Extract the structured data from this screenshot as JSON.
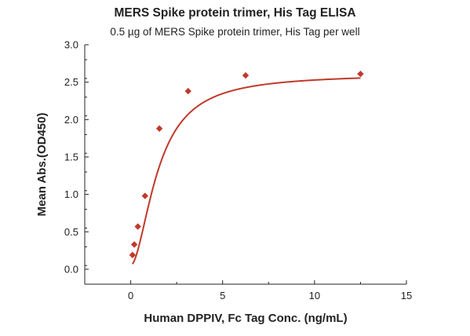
{
  "chart_data": {
    "type": "scatter",
    "title": "MERS Spike protein trimer, His Tag ELISA",
    "subtitle": "0.5 µg of MERS Spike protein trimer, His Tag per well",
    "xlabel": "Human DPPIV, Fc Tag Conc. (ng/mL)",
    "ylabel": "Mean Abs.(OD450)",
    "xlim": [
      -2.5,
      15
    ],
    "ylim": [
      -0.2,
      3.0
    ],
    "xticks": [
      0,
      5,
      10,
      15
    ],
    "yticks": [
      0.0,
      0.5,
      1.0,
      1.5,
      2.0,
      2.5,
      3.0
    ],
    "xtick_labels": [
      "0",
      "5",
      "10",
      "15"
    ],
    "ytick_labels": [
      "0.0",
      "0.5",
      "1.0",
      "1.5",
      "2.0",
      "2.5",
      "3.0"
    ],
    "grid": false,
    "series": [
      {
        "marker": "diamond",
        "color": "#c0392b",
        "x": [
          0.098,
          0.195,
          0.39,
          0.78,
          1.56,
          3.125,
          6.25,
          12.5
        ],
        "y": [
          0.19,
          0.33,
          0.57,
          0.98,
          1.88,
          2.38,
          2.59,
          2.61
        ]
      }
    ],
    "fit_curve": {
      "color": "#c0392b",
      "bottom": 0.05,
      "top": 2.61,
      "ec50": 1.5,
      "hill": 1.8
    }
  }
}
